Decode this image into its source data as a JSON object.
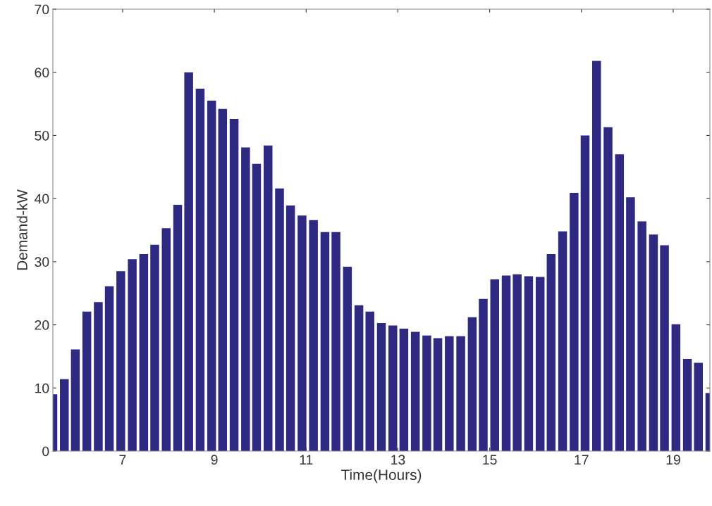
{
  "chart_data": {
    "type": "bar",
    "xlabel": "Time(Hours)",
    "ylabel": "Demand-kW",
    "color": "#2e2a82",
    "x": [
      5.48,
      5.73,
      5.97,
      6.22,
      6.47,
      6.71,
      6.96,
      7.21,
      7.46,
      7.7,
      7.95,
      8.2,
      8.44,
      8.69,
      8.94,
      9.18,
      9.43,
      9.68,
      9.92,
      10.17,
      10.42,
      10.66,
      10.91,
      11.16,
      11.41,
      11.65,
      11.9,
      12.15,
      12.39,
      12.64,
      12.89,
      13.13,
      13.38,
      13.63,
      13.87,
      14.12,
      14.37,
      14.62,
      14.86,
      15.11,
      15.36,
      15.6,
      15.85,
      16.1,
      16.34,
      16.59,
      16.84,
      17.08,
      17.33,
      17.58,
      17.83,
      18.07,
      18.32,
      18.57,
      18.81,
      19.06,
      19.31,
      19.55,
      19.8
    ],
    "values": [
      9.0,
      11.4,
      16.1,
      22.1,
      23.6,
      26.1,
      28.5,
      30.4,
      31.2,
      32.7,
      35.3,
      39.0,
      60.0,
      57.4,
      55.5,
      54.2,
      52.6,
      48.1,
      45.5,
      48.4,
      41.6,
      38.9,
      37.3,
      36.6,
      34.7,
      34.7,
      29.2,
      23.1,
      22.1,
      20.3,
      19.9,
      19.4,
      18.9,
      18.3,
      17.9,
      18.2,
      18.2,
      21.2,
      24.1,
      27.2,
      27.8,
      28.0,
      27.7,
      27.6,
      31.2,
      34.8,
      40.9,
      50.0,
      61.8,
      51.3,
      47.0,
      40.2,
      36.4,
      34.3,
      32.6,
      20.1,
      14.6,
      14.0,
      9.2
    ],
    "xlim": [
      5.48,
      19.8
    ],
    "xticks": [
      7,
      9,
      11,
      13,
      15,
      17,
      19
    ],
    "ylim": [
      0,
      70
    ],
    "yticks": [
      0,
      10,
      20,
      30,
      40,
      50,
      60,
      70
    ],
    "grid": false,
    "legend": false
  }
}
